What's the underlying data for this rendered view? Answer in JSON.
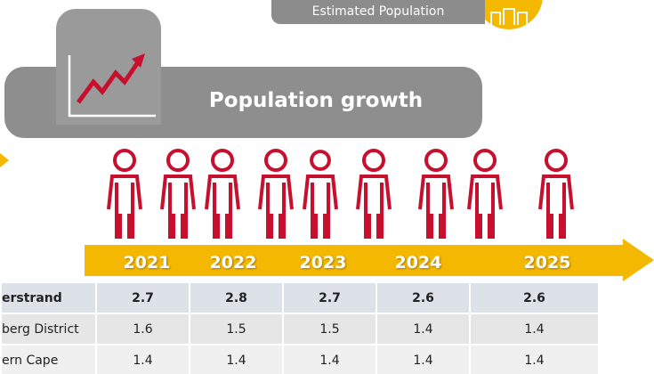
{
  "header": {
    "badge": "Estimated Population",
    "title": "Population growth"
  },
  "timeline": {
    "years": [
      "2021",
      "2022",
      "2023",
      "2024",
      "2025"
    ]
  },
  "table": {
    "rows": [
      [
        "erstrand",
        "2.7",
        "2.8",
        "2.7",
        "2.6",
        "2.6"
      ],
      [
        "berg District",
        "1.6",
        "1.5",
        "1.5",
        "1.4",
        "1.4"
      ],
      [
        "ern Cape",
        "1.4",
        "1.4",
        "1.4",
        "1.4",
        "1.4"
      ]
    ]
  }
}
